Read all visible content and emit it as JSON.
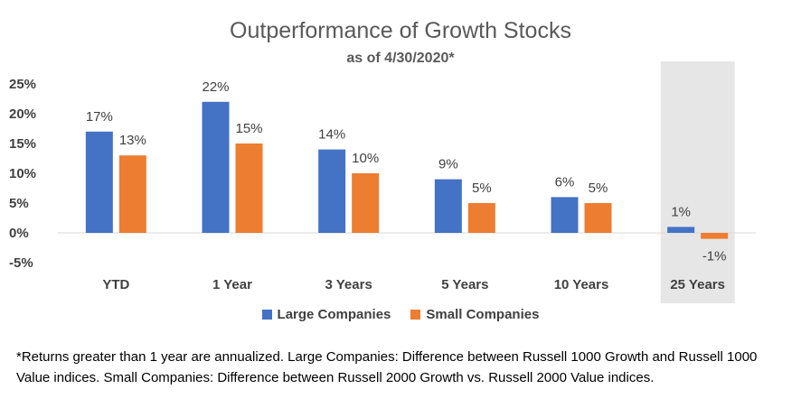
{
  "title": "Outperformance of Growth Stocks",
  "subtitle": "as of 4/30/2020*",
  "footnote": "*Returns greater than 1 year are annualized. Large Companies: Difference between Russell 1000 Growth and Russell 1000 Value indices. Small Companies: Difference between Russell 2000 Growth vs. Russell 2000 Value indices.",
  "colors": {
    "large": "#4472C4",
    "small": "#ED7D31",
    "highlight_band": "#E7E6E6"
  },
  "chart_data": {
    "type": "bar",
    "title": "Outperformance of Growth Stocks",
    "subtitle": "as of 4/30/2020*",
    "categories": [
      "YTD",
      "1 Year",
      "3 Years",
      "5 Years",
      "10 Years",
      "25 Years"
    ],
    "series": [
      {
        "name": "Large Companies",
        "values": [
          17,
          22,
          14,
          9,
          6,
          1
        ],
        "labels": [
          "17%",
          "22%",
          "14%",
          "9%",
          "6%",
          "1%"
        ]
      },
      {
        "name": "Small Companies",
        "values": [
          13,
          15,
          10,
          5,
          5,
          -1
        ],
        "labels": [
          "13%",
          "15%",
          "10%",
          "5%",
          "5%",
          "-1%"
        ]
      }
    ],
    "y_ticks": [
      25,
      20,
      15,
      10,
      5,
      0,
      -5
    ],
    "y_tick_labels": [
      "25%",
      "20%",
      "15%",
      "10%",
      "5%",
      "0%",
      "-5%"
    ],
    "ylim": [
      -5,
      25
    ],
    "highlighted_category": "25 Years",
    "grid": false,
    "legend_position": "bottom"
  }
}
